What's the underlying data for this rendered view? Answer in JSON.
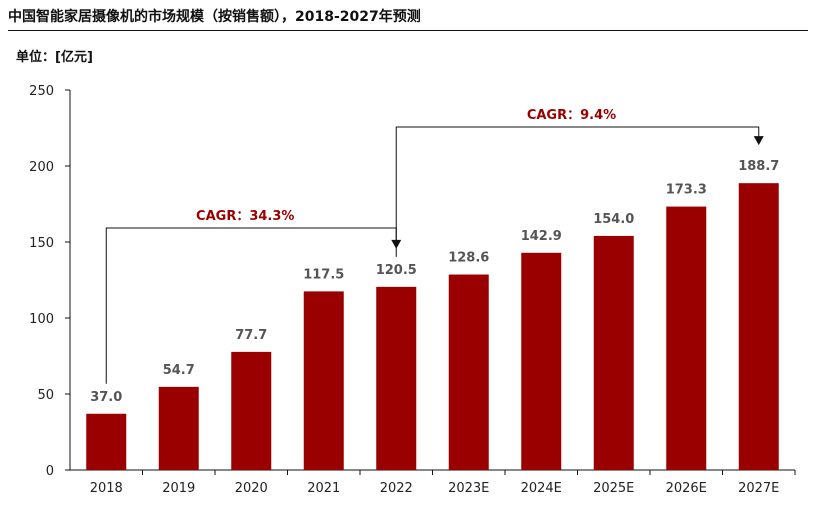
{
  "title": "中国智能家居摄像机的市场规模（按销售额），2018-2027年预测",
  "unit_label": "单位：[亿元]",
  "colors": {
    "bar": "#9b0000",
    "annotation": "#9b0000",
    "axis": "#111111"
  },
  "chart_data": {
    "type": "bar",
    "categories": [
      "2018",
      "2019",
      "2020",
      "2021",
      "2022",
      "2023E",
      "2024E",
      "2025E",
      "2026E",
      "2027E"
    ],
    "values": [
      37.0,
      54.7,
      77.7,
      117.5,
      120.5,
      128.6,
      142.9,
      154.0,
      173.3,
      188.7
    ],
    "data_labels": [
      "37.0",
      "54.7",
      "77.7",
      "117.5",
      "120.5",
      "128.6",
      "142.9",
      "154.0",
      "173.3",
      "188.7"
    ],
    "ylim": [
      0,
      250
    ],
    "yticks": [
      0,
      50,
      100,
      150,
      200,
      250
    ],
    "grid": false,
    "annotations": [
      {
        "text": "CAGR：34.3%",
        "from": "2018",
        "to": "2022"
      },
      {
        "text": "CAGR：9.4%",
        "from": "2022",
        "to": "2027E"
      }
    ]
  }
}
